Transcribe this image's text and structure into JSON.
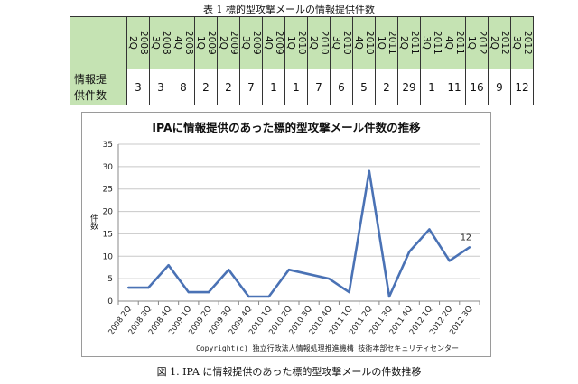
{
  "table": {
    "title": "表 1 標的型攻撃メールの情報提供件数",
    "row_label_line1": "情報提",
    "row_label_line2": "供件数"
  },
  "chart_data": {
    "type": "line",
    "title": "IPAに情報提供のあった標的型攻撃メール件数の推移",
    "ylabel": "件数",
    "xlabel": "",
    "categories": [
      "2008 2Q",
      "2008 3Q",
      "2008 4Q",
      "2009 1Q",
      "2009 2Q",
      "2009 3Q",
      "2009 4Q",
      "2010 1Q",
      "2010 2Q",
      "2010 3Q",
      "2010 4Q",
      "2011 1Q",
      "2011 2Q",
      "2011 3Q",
      "2011 4Q",
      "2012 1Q",
      "2012 2Q",
      "2012 3Q"
    ],
    "values": [
      3,
      3,
      8,
      2,
      2,
      7,
      1,
      1,
      7,
      6,
      5,
      2,
      29,
      1,
      11,
      16,
      9,
      12
    ],
    "ylim": [
      0,
      35
    ],
    "yticks": [
      "0",
      "5",
      "10",
      "15",
      "20",
      "25",
      "30",
      "35"
    ],
    "annotation": "12",
    "grid": true,
    "line_color": "#4a72b5"
  },
  "copyright": "Copyright(c) 独立行政法人情報処理推進機構 技術本部セキュリティセンター",
  "caption": "図 1. IPA に情報提供のあった標的型攻撃メールの件数推移"
}
